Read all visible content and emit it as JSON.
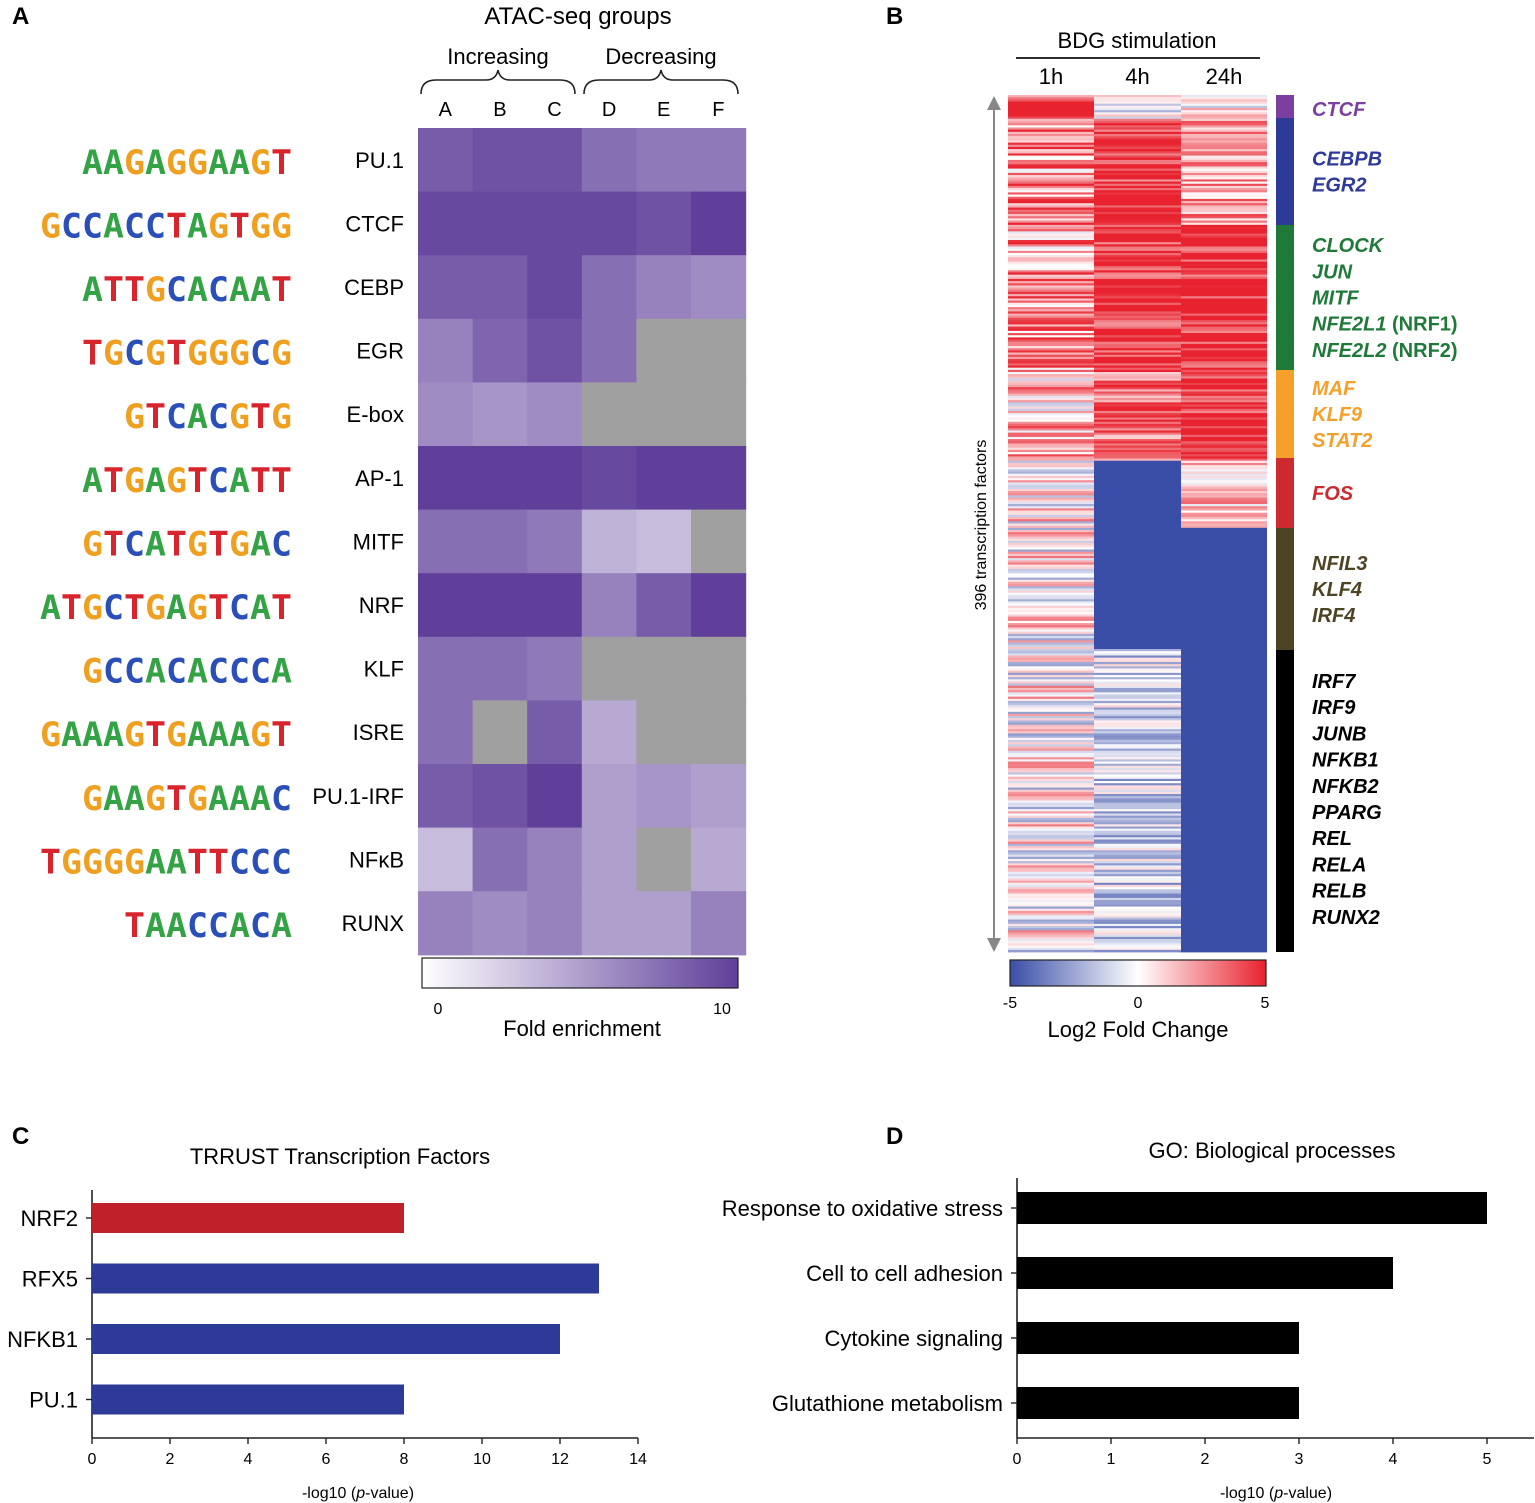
{
  "chart_data": [
    {
      "panel": "A",
      "type": "heatmap",
      "title": "ATAC-seq groups",
      "group_labels": [
        "Increasing",
        "Decreasing"
      ],
      "columns": [
        "A",
        "B",
        "C",
        "D",
        "E",
        "F"
      ],
      "rows": [
        "PU.1",
        "CTCF",
        "CEBP",
        "EGR",
        "E-box",
        "AP-1",
        "MITF",
        "NRF",
        "KLF",
        "ISRE",
        "PU.1-IRF",
        "NFκB",
        "RUNX"
      ],
      "motifs": [
        "AAGAGGAAGT",
        "GCCACCTAGTGG",
        "ATTGCACAAT",
        "TGCGTGGGCG",
        "GTCACGTG",
        "ATGAGTCATT",
        "GTCATGTGAC",
        "ATGCTGAGTCAT",
        "GCCACACCCA",
        "GAAAGTGAAAGT",
        "GAAGTGAAAC",
        "TGGGGAATTCCC",
        "TAACCACA"
      ],
      "values": [
        [
          8.5,
          9,
          9,
          7.5,
          7,
          7
        ],
        [
          9.5,
          9.5,
          9.5,
          9.5,
          9,
          10
        ],
        [
          8.5,
          8.5,
          9.5,
          7.5,
          6.5,
          6
        ],
        [
          6.5,
          8,
          9,
          7.5,
          null,
          null
        ],
        [
          6,
          5.5,
          6,
          null,
          null,
          null
        ],
        [
          10,
          10,
          10,
          9.5,
          10,
          10
        ],
        [
          7.5,
          7.5,
          7,
          4,
          3.5,
          null
        ],
        [
          10,
          10,
          10,
          6.5,
          8.5,
          10
        ],
        [
          7.5,
          7.5,
          7,
          null,
          null,
          null
        ],
        [
          7.5,
          null,
          8.5,
          4.5,
          null,
          null
        ],
        [
          8.5,
          9,
          10,
          5,
          5.5,
          5
        ],
        [
          3.5,
          7.5,
          6.5,
          5,
          null,
          4.5
        ],
        [
          6.5,
          6,
          6.5,
          5,
          5,
          6.5
        ]
      ],
      "missing_color": "#a0a0a0",
      "colorbar": {
        "label": "Fold enrichment",
        "min": 0,
        "max": 10,
        "low_color": "#ffffff",
        "high_color": "#5f3f9a"
      }
    },
    {
      "panel": "B",
      "type": "heatmap",
      "title": "BDG stimulation",
      "columns": [
        "1h",
        "4h",
        "24h"
      ],
      "row_count_label": "396 transcription factors",
      "colorbar": {
        "label": "Log2 Fold Change",
        "ticks": [
          "-5",
          "0",
          "5"
        ],
        "min": -5,
        "max": 5,
        "low_color": "#3a4ea8",
        "high_color": "#e8222e"
      },
      "clusters": [
        {
          "color": "#7b3fa0",
          "genes": [
            {
              "name": "CTCF"
            }
          ]
        },
        {
          "color": "#2e3a98",
          "genes": [
            {
              "name": "CEBPB"
            },
            {
              "name": "EGR2"
            }
          ]
        },
        {
          "color": "#1f7a3a",
          "genes": [
            {
              "name": "CLOCK"
            },
            {
              "name": "JUN"
            },
            {
              "name": "MITF"
            },
            {
              "name": "NFE2L1",
              "suffix": " (NRF1)"
            },
            {
              "name": "NFE2L2",
              "suffix": " (NRF2)"
            }
          ]
        },
        {
          "color": "#f5a02a",
          "genes": [
            {
              "name": "MAF"
            },
            {
              "name": "KLF9"
            },
            {
              "name": "STAT2"
            }
          ]
        },
        {
          "color": "#cc2a2e",
          "genes": [
            {
              "name": "FOS"
            }
          ]
        },
        {
          "color": "#4d4424",
          "genes": [
            {
              "name": "NFIL3"
            },
            {
              "name": "KLF4"
            },
            {
              "name": "IRF4"
            }
          ]
        },
        {
          "color": "#000000",
          "genes": [
            {
              "name": "IRF7"
            },
            {
              "name": "IRF9"
            },
            {
              "name": "JUNB"
            },
            {
              "name": "NFKB1"
            },
            {
              "name": "NFKB2"
            },
            {
              "name": "PPARG"
            },
            {
              "name": "REL"
            },
            {
              "name": "RELA"
            },
            {
              "name": "RELB"
            },
            {
              "name": "RUNX2"
            }
          ]
        }
      ]
    },
    {
      "panel": "C",
      "type": "bar",
      "orientation": "horizontal",
      "title": "TRRUST Transcription Factors",
      "categories": [
        "NRF2",
        "RFX5",
        "NFKB1",
        "PU.1"
      ],
      "values": [
        8,
        13,
        12,
        8
      ],
      "bar_colors": [
        "#c0202a",
        "#2e3a98",
        "#2e3a98",
        "#2e3a98"
      ],
      "xlabel_prefix": "-log10 (",
      "xlabel_italic": "p",
      "xlabel_suffix": "-value)",
      "xlim": [
        0,
        14
      ],
      "xticks": [
        "0",
        "2",
        "4",
        "6",
        "8",
        "10",
        "12",
        "14"
      ]
    },
    {
      "panel": "D",
      "type": "bar",
      "orientation": "horizontal",
      "title": "GO: Biological processes",
      "categories": [
        "Response to oxidative stress",
        "Cell to cell adhesion",
        "Cytokine signaling",
        "Glutathione metabolism"
      ],
      "values": [
        5,
        4,
        3,
        3
      ],
      "bar_colors": [
        "#000000",
        "#000000",
        "#000000",
        "#000000"
      ],
      "xlabel_prefix": "-log10 (",
      "xlabel_italic": "p",
      "xlabel_suffix": "-value)",
      "xlim": [
        0,
        5.5
      ],
      "xticks": [
        "0",
        "1",
        "2",
        "3",
        "4",
        "5"
      ]
    }
  ],
  "panel_labels": [
    "A",
    "B",
    "C",
    "D"
  ]
}
